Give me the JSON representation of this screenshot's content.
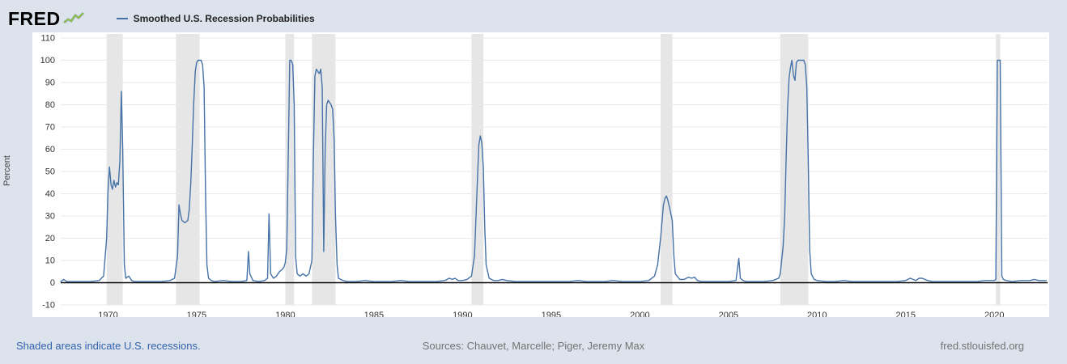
{
  "page": {
    "background": "#dce3ed"
  },
  "header": {
    "logo_text": "FRED",
    "legend_label": "Smoothed U.S. Recession Probabilities"
  },
  "footer": {
    "recessions_note": "Shaded areas indicate U.S. recessions.",
    "sources": "Sources: Chauvet, Marcelle; Piger, Jeremy Max",
    "site_link": "fred.stlouisfed.org"
  },
  "chart_data": {
    "type": "line",
    "title": "Smoothed U.S. Recession Probabilities",
    "xlabel": "",
    "ylabel": "Percent",
    "xlim": [
      1967.33,
      2023.0
    ],
    "ylim": [
      -10,
      110
    ],
    "y_ticks": [
      110,
      100,
      90,
      80,
      70,
      60,
      50,
      40,
      30,
      20,
      10,
      0,
      -10
    ],
    "x_ticks": [
      1970,
      1975,
      1980,
      1985,
      1990,
      1995,
      2000,
      2005,
      2010,
      2015,
      2020
    ],
    "grid": true,
    "legend_position": "top-left",
    "line_color": "#4572a7",
    "band_color": "#e6e6e6",
    "grid_color": "#e9e9e9",
    "zero_line_color": "#000000",
    "recession_bands": [
      [
        1969.92,
        1970.83
      ],
      [
        1973.83,
        1975.17
      ],
      [
        1980.0,
        1980.5
      ],
      [
        1981.5,
        1982.83
      ],
      [
        1990.5,
        1991.17
      ],
      [
        2001.17,
        2001.83
      ],
      [
        2007.92,
        2009.5
      ],
      [
        2020.08,
        2020.33
      ]
    ],
    "series": [
      {
        "name": "Smoothed U.S. Recession Probabilities",
        "points": [
          [
            1967.33,
            0.5
          ],
          [
            1967.5,
            1.5
          ],
          [
            1967.67,
            0.5
          ],
          [
            1968.0,
            0.5
          ],
          [
            1968.5,
            0.5
          ],
          [
            1969.0,
            0.5
          ],
          [
            1969.5,
            1
          ],
          [
            1969.75,
            3
          ],
          [
            1969.92,
            20
          ],
          [
            1970.0,
            42
          ],
          [
            1970.08,
            52
          ],
          [
            1970.17,
            44
          ],
          [
            1970.25,
            42
          ],
          [
            1970.33,
            46
          ],
          [
            1970.42,
            43
          ],
          [
            1970.5,
            45
          ],
          [
            1970.58,
            44
          ],
          [
            1970.67,
            55
          ],
          [
            1970.75,
            86
          ],
          [
            1970.83,
            60
          ],
          [
            1970.92,
            8
          ],
          [
            1971.0,
            2
          ],
          [
            1971.17,
            3
          ],
          [
            1971.33,
            1
          ],
          [
            1971.5,
            0.5
          ],
          [
            1972.0,
            0.5
          ],
          [
            1972.5,
            0.5
          ],
          [
            1973.0,
            0.5
          ],
          [
            1973.5,
            1
          ],
          [
            1973.75,
            2
          ],
          [
            1973.92,
            12
          ],
          [
            1974.0,
            35
          ],
          [
            1974.08,
            31
          ],
          [
            1974.17,
            28
          ],
          [
            1974.33,
            27
          ],
          [
            1974.5,
            28
          ],
          [
            1974.58,
            33
          ],
          [
            1974.67,
            45
          ],
          [
            1974.75,
            62
          ],
          [
            1974.83,
            80
          ],
          [
            1974.92,
            95
          ],
          [
            1975.0,
            99
          ],
          [
            1975.08,
            100
          ],
          [
            1975.17,
            100
          ],
          [
            1975.25,
            100
          ],
          [
            1975.33,
            98
          ],
          [
            1975.42,
            88
          ],
          [
            1975.5,
            40
          ],
          [
            1975.58,
            8
          ],
          [
            1975.67,
            2
          ],
          [
            1975.83,
            1
          ],
          [
            1976.0,
            0.5
          ],
          [
            1976.5,
            1
          ],
          [
            1977.0,
            0.5
          ],
          [
            1977.5,
            0.5
          ],
          [
            1977.83,
            1
          ],
          [
            1977.92,
            14
          ],
          [
            1978.0,
            4
          ],
          [
            1978.17,
            1
          ],
          [
            1978.5,
            0.5
          ],
          [
            1978.83,
            1
          ],
          [
            1979.0,
            2
          ],
          [
            1979.08,
            31
          ],
          [
            1979.17,
            4
          ],
          [
            1979.33,
            2
          ],
          [
            1979.5,
            3
          ],
          [
            1979.67,
            5
          ],
          [
            1979.83,
            6
          ],
          [
            1979.92,
            7
          ],
          [
            1980.0,
            9
          ],
          [
            1980.08,
            15
          ],
          [
            1980.17,
            60
          ],
          [
            1980.25,
            100
          ],
          [
            1980.33,
            100
          ],
          [
            1980.42,
            98
          ],
          [
            1980.5,
            80
          ],
          [
            1980.58,
            12
          ],
          [
            1980.67,
            4
          ],
          [
            1980.83,
            3
          ],
          [
            1981.0,
            4
          ],
          [
            1981.17,
            3
          ],
          [
            1981.33,
            4
          ],
          [
            1981.5,
            10
          ],
          [
            1981.58,
            55
          ],
          [
            1981.67,
            93
          ],
          [
            1981.75,
            96
          ],
          [
            1981.83,
            95
          ],
          [
            1981.92,
            94
          ],
          [
            1982.0,
            96
          ],
          [
            1982.08,
            88
          ],
          [
            1982.17,
            14
          ],
          [
            1982.25,
            60
          ],
          [
            1982.33,
            80
          ],
          [
            1982.42,
            82
          ],
          [
            1982.5,
            81
          ],
          [
            1982.58,
            80
          ],
          [
            1982.67,
            78
          ],
          [
            1982.75,
            65
          ],
          [
            1982.83,
            30
          ],
          [
            1982.92,
            8
          ],
          [
            1983.0,
            2
          ],
          [
            1983.25,
            1
          ],
          [
            1983.5,
            0.5
          ],
          [
            1984.0,
            0.5
          ],
          [
            1984.5,
            1
          ],
          [
            1985.0,
            0.5
          ],
          [
            1985.5,
            0.5
          ],
          [
            1986.0,
            0.5
          ],
          [
            1986.5,
            1
          ],
          [
            1987.0,
            0.5
          ],
          [
            1987.5,
            0.5
          ],
          [
            1988.0,
            0.5
          ],
          [
            1988.5,
            0.5
          ],
          [
            1989.0,
            1
          ],
          [
            1989.25,
            2
          ],
          [
            1989.42,
            1.5
          ],
          [
            1989.58,
            2
          ],
          [
            1989.75,
            1
          ],
          [
            1990.0,
            1
          ],
          [
            1990.25,
            1.5
          ],
          [
            1990.5,
            3
          ],
          [
            1990.67,
            12
          ],
          [
            1990.83,
            45
          ],
          [
            1990.92,
            62
          ],
          [
            1991.0,
            66
          ],
          [
            1991.08,
            63
          ],
          [
            1991.17,
            52
          ],
          [
            1991.25,
            25
          ],
          [
            1991.33,
            8
          ],
          [
            1991.5,
            2
          ],
          [
            1991.75,
            1
          ],
          [
            1992.0,
            1
          ],
          [
            1992.25,
            1.5
          ],
          [
            1992.5,
            1
          ],
          [
            1993.0,
            0.5
          ],
          [
            1993.5,
            0.5
          ],
          [
            1994.0,
            0.5
          ],
          [
            1995.0,
            0.5
          ],
          [
            1996.0,
            0.5
          ],
          [
            1996.5,
            1
          ],
          [
            1997.0,
            0.5
          ],
          [
            1998.0,
            0.5
          ],
          [
            1998.5,
            1
          ],
          [
            1999.0,
            0.5
          ],
          [
            2000.0,
            0.5
          ],
          [
            2000.5,
            1
          ],
          [
            2000.83,
            3
          ],
          [
            2001.0,
            8
          ],
          [
            2001.17,
            20
          ],
          [
            2001.33,
            35
          ],
          [
            2001.42,
            38
          ],
          [
            2001.5,
            39
          ],
          [
            2001.58,
            37
          ],
          [
            2001.67,
            34
          ],
          [
            2001.83,
            28
          ],
          [
            2001.92,
            12
          ],
          [
            2002.0,
            4
          ],
          [
            2002.25,
            1.5
          ],
          [
            2002.5,
            1.5
          ],
          [
            2002.75,
            2.5
          ],
          [
            2002.92,
            2
          ],
          [
            2003.08,
            2.5
          ],
          [
            2003.25,
            1
          ],
          [
            2003.5,
            0.5
          ],
          [
            2004.0,
            0.5
          ],
          [
            2004.5,
            0.5
          ],
          [
            2005.0,
            0.5
          ],
          [
            2005.42,
            1
          ],
          [
            2005.58,
            11
          ],
          [
            2005.67,
            2
          ],
          [
            2005.83,
            1
          ],
          [
            2006.0,
            0.5
          ],
          [
            2006.5,
            0.5
          ],
          [
            2007.0,
            0.5
          ],
          [
            2007.5,
            1
          ],
          [
            2007.83,
            2
          ],
          [
            2007.92,
            4
          ],
          [
            2008.0,
            10
          ],
          [
            2008.08,
            16
          ],
          [
            2008.17,
            30
          ],
          [
            2008.25,
            55
          ],
          [
            2008.33,
            78
          ],
          [
            2008.42,
            92
          ],
          [
            2008.5,
            97
          ],
          [
            2008.58,
            100
          ],
          [
            2008.67,
            93
          ],
          [
            2008.75,
            91
          ],
          [
            2008.83,
            99
          ],
          [
            2008.92,
            100
          ],
          [
            2009.0,
            100
          ],
          [
            2009.08,
            100
          ],
          [
            2009.17,
            100
          ],
          [
            2009.25,
            100
          ],
          [
            2009.33,
            98
          ],
          [
            2009.42,
            88
          ],
          [
            2009.5,
            55
          ],
          [
            2009.58,
            15
          ],
          [
            2009.67,
            4
          ],
          [
            2009.83,
            1.5
          ],
          [
            2010.0,
            1
          ],
          [
            2010.5,
            0.5
          ],
          [
            2011.0,
            0.5
          ],
          [
            2011.5,
            1
          ],
          [
            2012.0,
            0.5
          ],
          [
            2012.5,
            0.5
          ],
          [
            2013.0,
            0.5
          ],
          [
            2013.5,
            0.5
          ],
          [
            2014.0,
            0.5
          ],
          [
            2014.5,
            0.5
          ],
          [
            2015.0,
            1
          ],
          [
            2015.25,
            2
          ],
          [
            2015.42,
            1.5
          ],
          [
            2015.58,
            1
          ],
          [
            2015.75,
            2
          ],
          [
            2015.92,
            2
          ],
          [
            2016.08,
            1.5
          ],
          [
            2016.25,
            1
          ],
          [
            2016.5,
            0.5
          ],
          [
            2017.0,
            0.5
          ],
          [
            2017.5,
            0.5
          ],
          [
            2018.0,
            0.5
          ],
          [
            2018.5,
            0.5
          ],
          [
            2019.0,
            0.5
          ],
          [
            2019.5,
            1
          ],
          [
            2019.83,
            1
          ],
          [
            2020.0,
            1
          ],
          [
            2020.08,
            1.5
          ],
          [
            2020.17,
            100
          ],
          [
            2020.25,
            100
          ],
          [
            2020.33,
            100
          ],
          [
            2020.42,
            3
          ],
          [
            2020.5,
            1.5
          ],
          [
            2020.67,
            1
          ],
          [
            2021.0,
            0.5
          ],
          [
            2021.5,
            1
          ],
          [
            2022.0,
            1
          ],
          [
            2022.25,
            1.5
          ],
          [
            2022.5,
            1
          ],
          [
            2022.75,
            1
          ],
          [
            2022.92,
            1
          ]
        ]
      }
    ]
  }
}
